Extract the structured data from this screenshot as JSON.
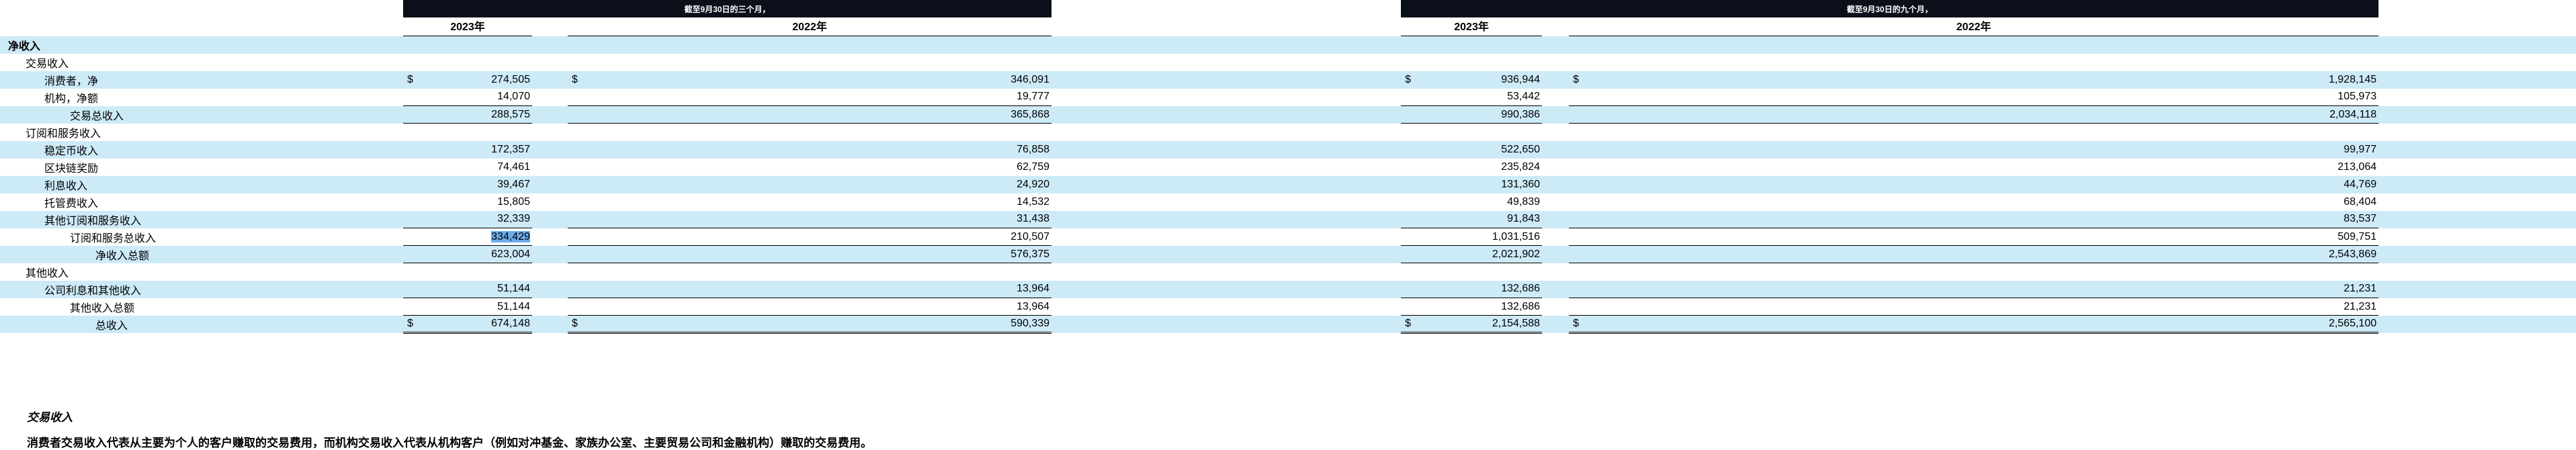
{
  "colors": {
    "period_bar_bg": "#0b0f19",
    "period_bar_text": "#ffffff",
    "row_stripe": "#cdeaf7",
    "selection_highlight": "#6cacea",
    "border": "#000000"
  },
  "table": {
    "dollar_symbol": "$",
    "period_headers": [
      "截至9月30日的三个月，",
      "截至9月30日的九个月，"
    ],
    "year_headers": [
      "2023年",
      "2022年",
      "2023年",
      "2022年"
    ],
    "rows": [
      {
        "label": "净收入",
        "indent": 0,
        "bold": true,
        "stripe": true,
        "dollar": false,
        "values": [
          "",
          "",
          "",
          ""
        ],
        "border": null,
        "highlight": null
      },
      {
        "label": "交易收入",
        "indent": 1,
        "bold": false,
        "stripe": false,
        "dollar": false,
        "values": [
          "",
          "",
          "",
          ""
        ],
        "border": null,
        "highlight": null
      },
      {
        "label": "消费者，净",
        "indent": 2,
        "bold": false,
        "stripe": true,
        "dollar": true,
        "values": [
          "274,505",
          "346,091",
          "936,944",
          "1,928,145"
        ],
        "border": null,
        "highlight": null
      },
      {
        "label": "机构，净额",
        "indent": 2,
        "bold": false,
        "stripe": false,
        "dollar": false,
        "values": [
          "14,070",
          "19,777",
          "53,442",
          "105,973"
        ],
        "border": "single",
        "highlight": null
      },
      {
        "label": "交易总收入",
        "indent": 3,
        "bold": false,
        "stripe": true,
        "dollar": false,
        "values": [
          "288,575",
          "365,868",
          "990,386",
          "2,034,118"
        ],
        "border": "single",
        "highlight": null
      },
      {
        "label": "订阅和服务收入",
        "indent": 1,
        "bold": false,
        "stripe": false,
        "dollar": false,
        "values": [
          "",
          "",
          "",
          ""
        ],
        "border": null,
        "highlight": null
      },
      {
        "label": "稳定币收入",
        "indent": 2,
        "bold": false,
        "stripe": true,
        "dollar": false,
        "values": [
          "172,357",
          "76,858",
          "522,650",
          "99,977"
        ],
        "border": null,
        "highlight": null
      },
      {
        "label": "区块链奖励",
        "indent": 2,
        "bold": false,
        "stripe": false,
        "dollar": false,
        "values": [
          "74,461",
          "62,759",
          "235,824",
          "213,064"
        ],
        "border": null,
        "highlight": null
      },
      {
        "label": "利息收入",
        "indent": 2,
        "bold": false,
        "stripe": true,
        "dollar": false,
        "values": [
          "39,467",
          "24,920",
          "131,360",
          "44,769"
        ],
        "border": null,
        "highlight": null
      },
      {
        "label": "托管费收入",
        "indent": 2,
        "bold": false,
        "stripe": false,
        "dollar": false,
        "values": [
          "15,805",
          "14,532",
          "49,839",
          "68,404"
        ],
        "border": null,
        "highlight": null
      },
      {
        "label": "其他订阅和服务收入",
        "indent": 2,
        "bold": false,
        "stripe": true,
        "dollar": false,
        "values": [
          "32,339",
          "31,438",
          "91,843",
          "83,537"
        ],
        "border": "single",
        "highlight": null
      },
      {
        "label": "订阅和服务总收入",
        "indent": 3,
        "bold": false,
        "stripe": false,
        "dollar": false,
        "values": [
          "334,429",
          "210,507",
          "1,031,516",
          "509,751"
        ],
        "border": "single",
        "highlight": 0
      },
      {
        "label": "净收入总额",
        "indent": 4,
        "bold": false,
        "stripe": true,
        "dollar": false,
        "values": [
          "623,004",
          "576,375",
          "2,021,902",
          "2,543,869"
        ],
        "border": "single",
        "highlight": null
      },
      {
        "label": "其他收入",
        "indent": 1,
        "bold": false,
        "stripe": false,
        "dollar": false,
        "values": [
          "",
          "",
          "",
          ""
        ],
        "border": null,
        "highlight": null
      },
      {
        "label": "公司利息和其他收入",
        "indent": 2,
        "bold": false,
        "stripe": true,
        "dollar": false,
        "values": [
          "51,144",
          "13,964",
          "132,686",
          "21,231"
        ],
        "border": "single",
        "highlight": null
      },
      {
        "label": "其他收入总额",
        "indent": 3,
        "bold": false,
        "stripe": false,
        "dollar": false,
        "values": [
          "51,144",
          "13,964",
          "132,686",
          "21,231"
        ],
        "border": "single",
        "highlight": null
      },
      {
        "label": "总收入",
        "indent": 4,
        "bold": false,
        "stripe": true,
        "dollar": true,
        "values": [
          "674,148",
          "590,339",
          "2,154,588",
          "2,565,100"
        ],
        "border": "double",
        "highlight": null
      }
    ]
  },
  "footnotes": {
    "heading": "交易收入",
    "body": "消费者交易收入代表从主要为个人的客户赚取的交易费用，而机构交易收入代表从机构客户（例如对冲基金、家族办公室、主要贸易公司和金融机构）赚取的交易费用。"
  }
}
